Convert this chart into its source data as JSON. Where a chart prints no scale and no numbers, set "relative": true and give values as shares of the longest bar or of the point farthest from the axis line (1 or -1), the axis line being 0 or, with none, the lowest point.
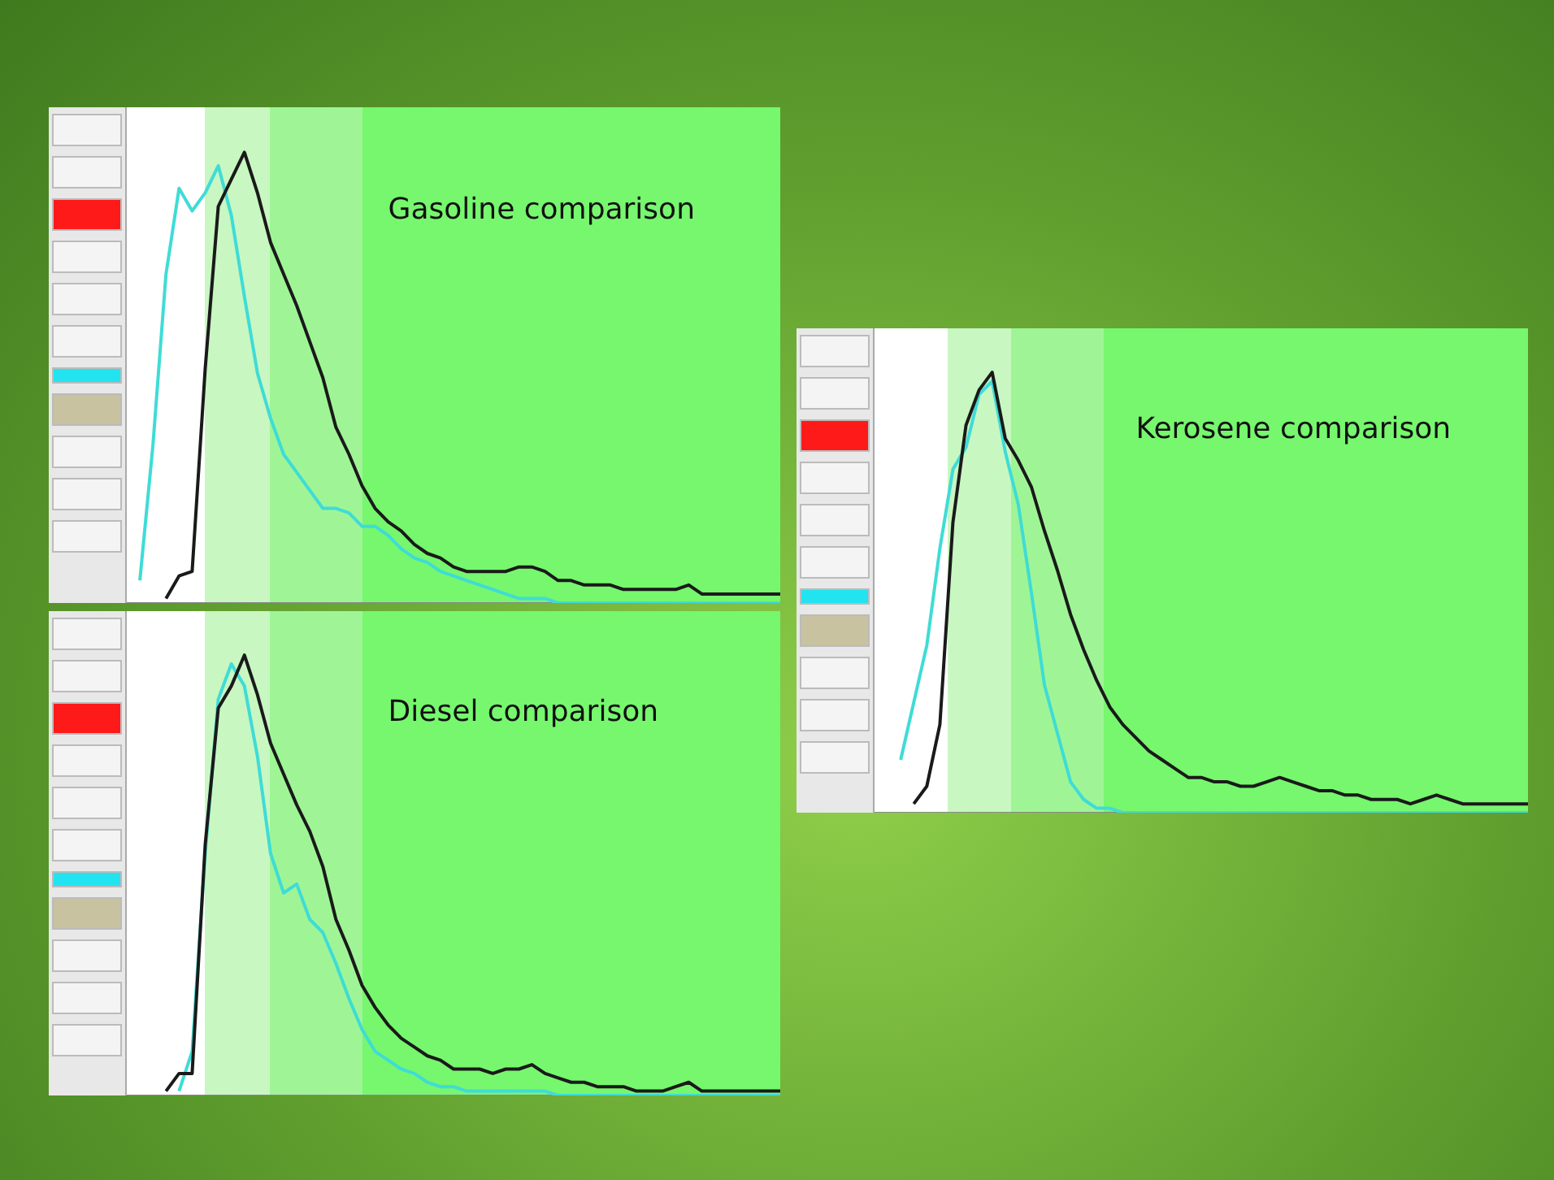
{
  "chart_data": [
    {
      "type": "line",
      "title": "Gasoline comparison",
      "relative": true,
      "categories": [
        null,
        null,
        null,
        null,
        null,
        null,
        null,
        null,
        null,
        null,
        null,
        null,
        null,
        null,
        null,
        null,
        null,
        null,
        null,
        null,
        null,
        null,
        null,
        null,
        null,
        null,
        null,
        null,
        null,
        null,
        null,
        null,
        null,
        null,
        null,
        null,
        null,
        null,
        null,
        null,
        null,
        null,
        null,
        null,
        null,
        null,
        null,
        null,
        null,
        null,
        null
      ],
      "series": [
        {
          "color": "#1a1a1a",
          "values": [
            null,
            null,
            null,
            0.01,
            0.06,
            0.07,
            0.52,
            0.88,
            0.94,
            1,
            0.91,
            0.8,
            0.73,
            0.66,
            0.58,
            0.5,
            0.39,
            0.33,
            0.26,
            0.21,
            0.18,
            0.16,
            0.13,
            0.11,
            0.1,
            0.08,
            0.07,
            0.07,
            0.07,
            0.07,
            0.08,
            0.08,
            0.07,
            0.05,
            0.05,
            0.04,
            0.04,
            0.04,
            0.03,
            0.03,
            0.03,
            0.03,
            0.03,
            0.04,
            0.02,
            0.02,
            0.02,
            0.02,
            0.02,
            0.02,
            0.02
          ]
        },
        {
          "color": "#3fdcd6",
          "values": [
            null,
            0.05,
            0.35,
            0.73,
            0.92,
            0.87,
            0.91,
            0.97,
            0.86,
            0.68,
            0.51,
            0.41,
            0.33,
            0.29,
            0.25,
            0.21,
            0.21,
            0.2,
            0.17,
            0.17,
            0.15,
            0.12,
            0.1,
            0.09,
            0.07,
            0.06,
            0.05,
            0.04,
            0.03,
            0.02,
            0.01,
            0.01,
            0.01,
            0,
            0,
            0,
            0,
            0,
            0,
            0,
            0,
            0,
            0,
            0,
            0,
            0,
            0,
            0,
            0,
            0,
            0
          ]
        }
      ]
    },
    {
      "type": "line",
      "title": "Diesel comparison",
      "relative": true,
      "categories": [
        null,
        null,
        null,
        null,
        null,
        null,
        null,
        null,
        null,
        null,
        null,
        null,
        null,
        null,
        null,
        null,
        null,
        null,
        null,
        null,
        null,
        null,
        null,
        null,
        null,
        null,
        null,
        null,
        null,
        null,
        null,
        null,
        null,
        null,
        null,
        null,
        null,
        null,
        null,
        null,
        null,
        null,
        null,
        null,
        null,
        null,
        null,
        null,
        null,
        null,
        null
      ],
      "series": [
        {
          "color": "#1a1a1a",
          "values": [
            null,
            null,
            null,
            0.01,
            0.05,
            0.05,
            0.57,
            0.88,
            0.93,
            1,
            0.91,
            0.8,
            0.73,
            0.66,
            0.6,
            0.52,
            0.4,
            0.33,
            0.25,
            0.2,
            0.16,
            0.13,
            0.11,
            0.09,
            0.08,
            0.06,
            0.06,
            0.06,
            0.05,
            0.06,
            0.06,
            0.07,
            0.05,
            0.04,
            0.03,
            0.03,
            0.02,
            0.02,
            0.02,
            0.01,
            0.01,
            0.01,
            0.02,
            0.03,
            0.01,
            0.01,
            0.01,
            0.01,
            0.01,
            0.01,
            0.01
          ]
        },
        {
          "color": "#3fdcd6",
          "values": [
            null,
            null,
            null,
            null,
            0.01,
            0.1,
            0.55,
            0.9,
            0.98,
            0.93,
            0.77,
            0.55,
            0.46,
            0.48,
            0.4,
            0.37,
            0.3,
            0.22,
            0.15,
            0.1,
            0.08,
            0.06,
            0.05,
            0.03,
            0.02,
            0.02,
            0.01,
            0.01,
            0.01,
            0.01,
            0.01,
            0.01,
            0.01,
            0,
            0,
            0,
            0,
            0,
            0,
            0,
            0,
            0,
            0,
            0,
            0,
            0,
            0,
            0,
            0,
            0,
            0
          ]
        }
      ]
    },
    {
      "type": "line",
      "title": "Kerosene comparison",
      "relative": true,
      "categories": [
        null,
        null,
        null,
        null,
        null,
        null,
        null,
        null,
        null,
        null,
        null,
        null,
        null,
        null,
        null,
        null,
        null,
        null,
        null,
        null,
        null,
        null,
        null,
        null,
        null,
        null,
        null,
        null,
        null,
        null,
        null,
        null,
        null,
        null,
        null,
        null,
        null,
        null,
        null,
        null,
        null,
        null,
        null,
        null,
        null,
        null,
        null,
        null,
        null,
        null,
        null
      ],
      "series": [
        {
          "color": "#1a1a1a",
          "values": [
            null,
            null,
            null,
            0.02,
            0.06,
            0.2,
            0.66,
            0.88,
            0.96,
            1,
            0.85,
            0.8,
            0.74,
            0.64,
            0.55,
            0.45,
            0.37,
            0.3,
            0.24,
            0.2,
            0.17,
            0.14,
            0.12,
            0.1,
            0.08,
            0.08,
            0.07,
            0.07,
            0.06,
            0.06,
            0.07,
            0.08,
            0.07,
            0.06,
            0.05,
            0.05,
            0.04,
            0.04,
            0.03,
            0.03,
            0.03,
            0.02,
            0.03,
            0.04,
            0.03,
            0.02,
            0.02,
            0.02,
            0.02,
            0.02,
            0.02
          ]
        },
        {
          "color": "#3fdcd6",
          "values": [
            null,
            null,
            0.12,
            0.25,
            0.38,
            0.6,
            0.78,
            0.83,
            0.95,
            0.98,
            0.82,
            0.7,
            0.5,
            0.29,
            0.18,
            0.07,
            0.03,
            0.01,
            0.01,
            0,
            0,
            0,
            0,
            0,
            0,
            0,
            0,
            0,
            0,
            0,
            0,
            0,
            0,
            0,
            0,
            0,
            0,
            0,
            0,
            0,
            0,
            0,
            0,
            0,
            0,
            0,
            0,
            0,
            0,
            0,
            0
          ]
        }
      ]
    }
  ]
}
